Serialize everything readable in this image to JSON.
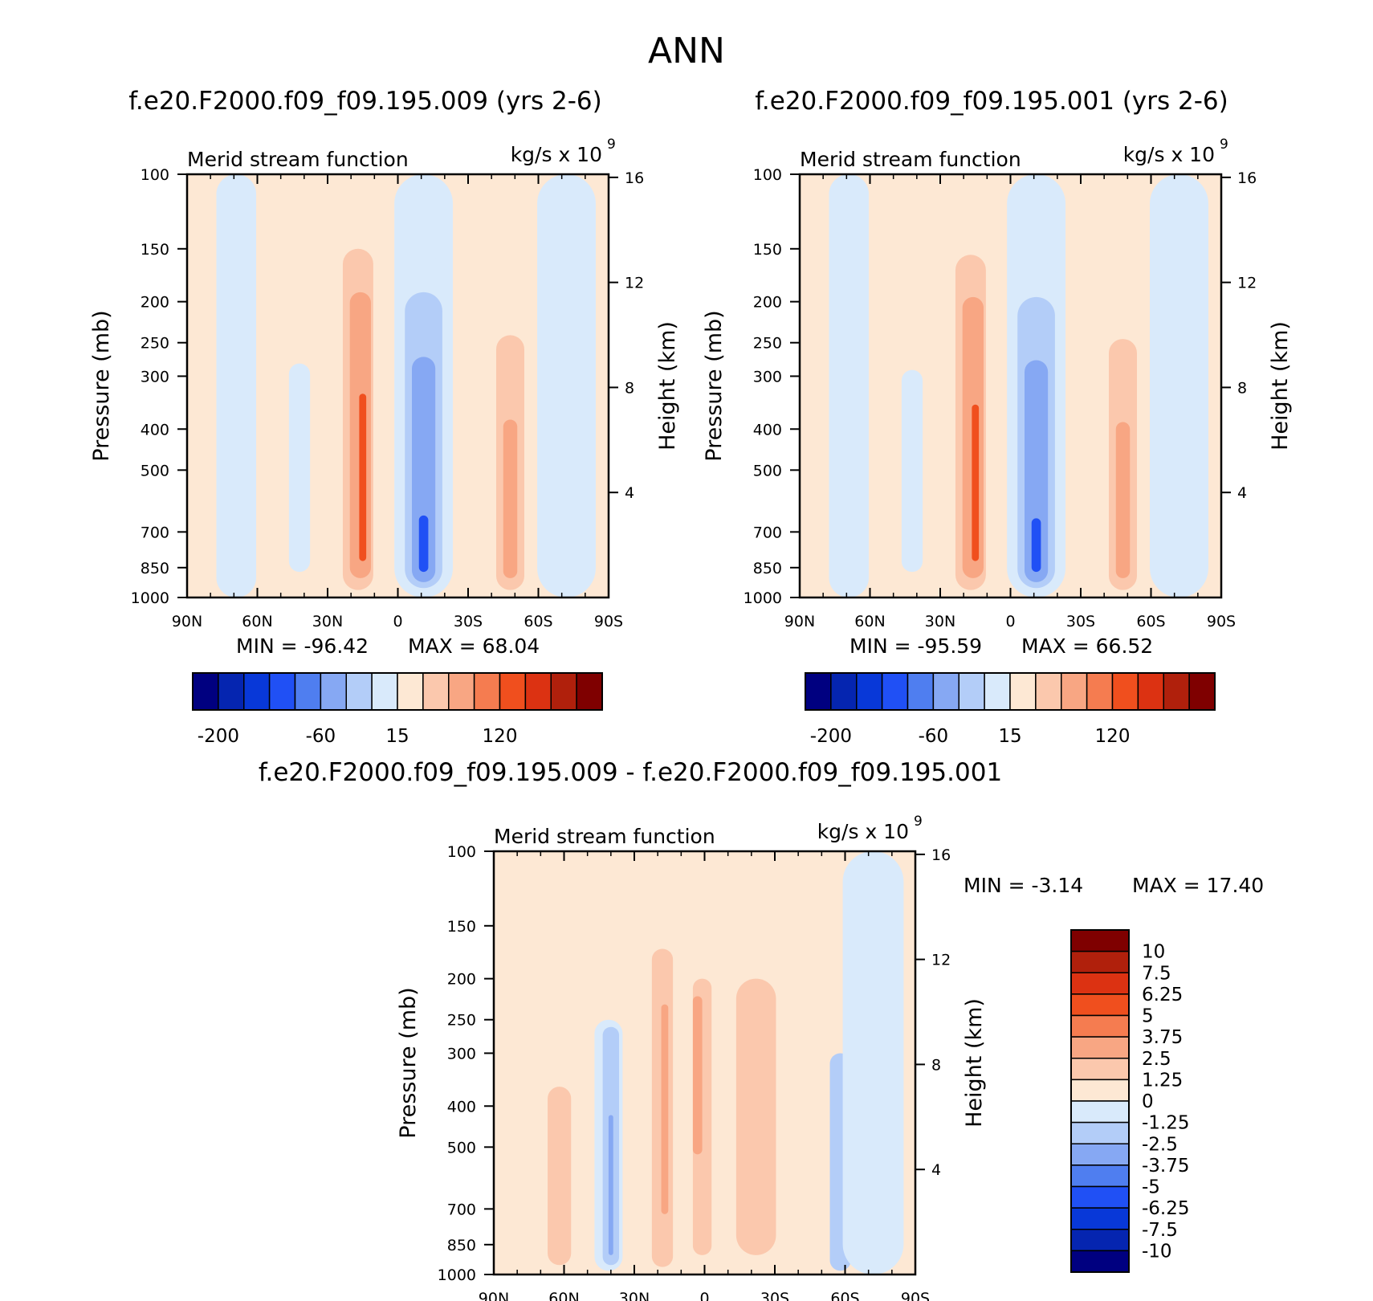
{
  "page_title": "ANN",
  "palettes": {
    "main_colors": [
      "#000080",
      "#0525b0",
      "#0838d8",
      "#2050f5",
      "#4f7ef0",
      "#86a8f3",
      "#b3cdf8",
      "#d9eafb",
      "#fde8d4",
      "#fbc8ad",
      "#f8a683",
      "#f57c50",
      "#f04f1e",
      "#dc3212",
      "#b0200c",
      "#7f0000"
    ],
    "main_labels": [
      "-200",
      "-60",
      "15",
      "120"
    ],
    "diff_colors": [
      "#000080",
      "#0525b0",
      "#0838d8",
      "#2050f5",
      "#4f7ef0",
      "#86a8f3",
      "#b3cdf8",
      "#d9eafb",
      "#fde8d4",
      "#fbc8ad",
      "#f8a683",
      "#f57c50",
      "#f04f1e",
      "#dc3212",
      "#b0200c",
      "#7f0000"
    ],
    "diff_labels": [
      "10",
      "7.5",
      "6.25",
      "5",
      "3.75",
      "2.5",
      "1.25",
      "0",
      "-1.25",
      "-2.5",
      "-3.75",
      "-5",
      "-6.25",
      "-7.5",
      "-10"
    ]
  },
  "panels": {
    "a": {
      "title": "f.e20.F2000.f09_f09.195.009 (yrs 2-6)",
      "left_label": "Merid stream function",
      "right_label": "kg/s x 10",
      "units_exp": "9",
      "min_text": "MIN = -96.42",
      "max_text": "MAX = 68.04"
    },
    "b": {
      "title": "f.e20.F2000.f09_f09.195.001 (yrs 2-6)",
      "left_label": "Merid stream function",
      "right_label": "kg/s x 10",
      "units_exp": "9",
      "min_text": "MIN = -95.59",
      "max_text": "MAX = 66.52"
    },
    "c": {
      "title": "f.e20.F2000.f09_f09.195.009 - f.e20.F2000.f09_f09.195.001",
      "left_label": "Merid stream function",
      "right_label": "kg/s x 10",
      "units_exp": "9",
      "min_text": "MIN = -3.14",
      "max_text": "MAX = 17.40"
    }
  },
  "chart_data": [
    {
      "type": "heatmap",
      "title": "f.e20.F2000.f09_f09.195.009 (yrs 2-6)",
      "subtitle": "Merid stream function",
      "units": "kg/s x 10^9",
      "xlabel": "",
      "ylabel": "Pressure (mb)",
      "ylabel_right": "Height (km)",
      "x_ticks": [
        "90N",
        "60N",
        "30N",
        "0",
        "30S",
        "60S",
        "90S"
      ],
      "x_values": [
        90,
        60,
        30,
        0,
        -30,
        -60,
        -90
      ],
      "y_ticks": [
        100,
        150,
        200,
        250,
        300,
        400,
        500,
        700,
        850,
        1000
      ],
      "y_scale": "log",
      "y_right_ticks": [
        4,
        8,
        12,
        16
      ],
      "min": -96.42,
      "max": 68.04,
      "levels_shown": [
        "-200",
        "-60",
        "15",
        "120"
      ],
      "cells": [
        {
          "lat": 69,
          "p_top": 100,
          "p_bot": 1000,
          "value": -10,
          "lat_width": 17
        },
        {
          "lat": 48,
          "p_top": 110,
          "p_bot": 1000,
          "value": 5,
          "lat_width": 17
        },
        {
          "lat": 42,
          "p_top": 280,
          "p_bot": 870,
          "value": -20,
          "lat_width": 9
        },
        {
          "lat": 17,
          "p_top": 150,
          "p_bot": 960,
          "value": 20,
          "lat_width": 13
        },
        {
          "lat": 16,
          "p_top": 190,
          "p_bot": 900,
          "value": 40,
          "lat_width": 9
        },
        {
          "lat": 15,
          "p_top": 330,
          "p_bot": 820,
          "value": 60,
          "lat_width": 3
        },
        {
          "lat": -11,
          "p_top": 100,
          "p_bot": 1000,
          "value": -10,
          "lat_width": 25
        },
        {
          "lat": -11,
          "p_top": 155,
          "p_bot": 980,
          "value": -20,
          "lat_width": 19
        },
        {
          "lat": -11,
          "p_top": 190,
          "p_bot": 950,
          "value": -40,
          "lat_width": 16
        },
        {
          "lat": -11,
          "p_top": 270,
          "p_bot": 920,
          "value": -60,
          "lat_width": 10
        },
        {
          "lat": -11,
          "p_top": 640,
          "p_bot": 870,
          "value": -90,
          "lat_width": 4
        },
        {
          "lat": -38,
          "p_top": 100,
          "p_bot": 1000,
          "value": 5,
          "lat_width": 18
        },
        {
          "lat": -48,
          "p_top": 240,
          "p_bot": 960,
          "value": 20,
          "lat_width": 12
        },
        {
          "lat": -48,
          "p_top": 380,
          "p_bot": 900,
          "value": 40,
          "lat_width": 6
        },
        {
          "lat": -72,
          "p_top": 100,
          "p_bot": 1000,
          "value": -5,
          "lat_width": 25
        }
      ]
    },
    {
      "type": "heatmap",
      "title": "f.e20.F2000.f09_f09.195.001 (yrs 2-6)",
      "subtitle": "Merid stream function",
      "units": "kg/s x 10^9",
      "xlabel": "",
      "ylabel": "Pressure (mb)",
      "ylabel_right": "Height (km)",
      "x_ticks": [
        "90N",
        "60N",
        "30N",
        "0",
        "30S",
        "60S",
        "90S"
      ],
      "x_values": [
        90,
        60,
        30,
        0,
        -30,
        -60,
        -90
      ],
      "y_ticks": [
        100,
        150,
        200,
        250,
        300,
        400,
        500,
        700,
        850,
        1000
      ],
      "y_scale": "log",
      "y_right_ticks": [
        4,
        8,
        12,
        16
      ],
      "min": -95.59,
      "max": 66.52,
      "levels_shown": [
        "-200",
        "-60",
        "15",
        "120"
      ],
      "cells": [
        {
          "lat": 69,
          "p_top": 100,
          "p_bot": 1000,
          "value": -10,
          "lat_width": 17
        },
        {
          "lat": 48,
          "p_top": 110,
          "p_bot": 1000,
          "value": 5,
          "lat_width": 17
        },
        {
          "lat": 42,
          "p_top": 290,
          "p_bot": 870,
          "value": -20,
          "lat_width": 9
        },
        {
          "lat": 17,
          "p_top": 155,
          "p_bot": 960,
          "value": 20,
          "lat_width": 13
        },
        {
          "lat": 16,
          "p_top": 195,
          "p_bot": 900,
          "value": 40,
          "lat_width": 9
        },
        {
          "lat": 15,
          "p_top": 350,
          "p_bot": 820,
          "value": 60,
          "lat_width": 3
        },
        {
          "lat": -11,
          "p_top": 100,
          "p_bot": 1000,
          "value": -10,
          "lat_width": 25
        },
        {
          "lat": -11,
          "p_top": 160,
          "p_bot": 980,
          "value": -20,
          "lat_width": 19
        },
        {
          "lat": -11,
          "p_top": 195,
          "p_bot": 950,
          "value": -40,
          "lat_width": 16
        },
        {
          "lat": -11,
          "p_top": 275,
          "p_bot": 920,
          "value": -60,
          "lat_width": 10
        },
        {
          "lat": -11,
          "p_top": 650,
          "p_bot": 870,
          "value": -90,
          "lat_width": 4
        },
        {
          "lat": -38,
          "p_top": 100,
          "p_bot": 1000,
          "value": 5,
          "lat_width": 18
        },
        {
          "lat": -48,
          "p_top": 245,
          "p_bot": 960,
          "value": 20,
          "lat_width": 12
        },
        {
          "lat": -48,
          "p_top": 385,
          "p_bot": 900,
          "value": 40,
          "lat_width": 6
        },
        {
          "lat": -72,
          "p_top": 100,
          "p_bot": 1000,
          "value": -5,
          "lat_width": 25
        }
      ]
    },
    {
      "type": "heatmap",
      "title": "f.e20.F2000.f09_f09.195.009 - f.e20.F2000.f09_f09.195.001",
      "subtitle": "Merid stream function",
      "units": "kg/s x 10^9",
      "xlabel": "",
      "ylabel": "Pressure (mb)",
      "ylabel_right": "Height (km)",
      "x_ticks": [
        "90N",
        "60N",
        "30N",
        "0",
        "30S",
        "60S",
        "90S"
      ],
      "x_values": [
        90,
        60,
        30,
        0,
        -30,
        -60,
        -90
      ],
      "y_ticks": [
        100,
        150,
        200,
        250,
        300,
        400,
        500,
        700,
        850,
        1000
      ],
      "y_scale": "log",
      "y_right_ticks": [
        4,
        8,
        12,
        16
      ],
      "min": -3.14,
      "max": 17.4,
      "levels_shown": [
        "10",
        "7.5",
        "6.25",
        "5",
        "3.75",
        "2.5",
        "1.25",
        "0",
        "-1.25",
        "-2.5",
        "-3.75",
        "-5",
        "-6.25",
        "-7.5",
        "-10"
      ],
      "cells": [
        {
          "lat": 68,
          "p_top": 100,
          "p_bot": 1000,
          "value": 0.5,
          "lat_width": 28
        },
        {
          "lat": 62,
          "p_top": 360,
          "p_bot": 950,
          "value": 1.5,
          "lat_width": 10
        },
        {
          "lat": 41,
          "p_top": 250,
          "p_bot": 980,
          "value": -0.8,
          "lat_width": 12
        },
        {
          "lat": 40,
          "p_top": 260,
          "p_bot": 950,
          "value": -1.5,
          "lat_width": 7
        },
        {
          "lat": 40,
          "p_top": 420,
          "p_bot": 900,
          "value": -2.8,
          "lat_width": 2
        },
        {
          "lat": 18,
          "p_top": 170,
          "p_bot": 960,
          "value": 1.5,
          "lat_width": 9
        },
        {
          "lat": 17,
          "p_top": 230,
          "p_bot": 720,
          "value": 3.0,
          "lat_width": 3
        },
        {
          "lat": 1,
          "p_top": 200,
          "p_bot": 900,
          "value": 1.5,
          "lat_width": 8
        },
        {
          "lat": 3,
          "p_top": 220,
          "p_bot": 520,
          "value": 3.0,
          "lat_width": 4
        },
        {
          "lat": -22,
          "p_top": 100,
          "p_bot": 1000,
          "value": 0.5,
          "lat_width": 27
        },
        {
          "lat": -22,
          "p_top": 200,
          "p_bot": 900,
          "value": 1.5,
          "lat_width": 17
        },
        {
          "lat": -58,
          "p_top": 300,
          "p_bot": 980,
          "value": -1.5,
          "lat_width": 9
        },
        {
          "lat": -72,
          "p_top": 100,
          "p_bot": 1000,
          "value": -0.5,
          "lat_width": 26
        }
      ]
    }
  ]
}
